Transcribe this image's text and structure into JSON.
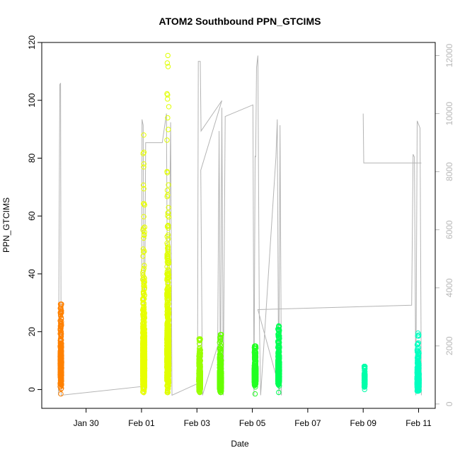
{
  "chart_data": {
    "type": "scatter",
    "title": "ATOM2 Southbound PPN_GTCIMS",
    "xlabel": "Date",
    "ylabel": "PPN_GTCIMS",
    "x_ticks": [
      "Jan 30",
      "Feb 01",
      "Feb 03",
      "Feb 05",
      "Feb 07",
      "Feb 09",
      "Feb 11"
    ],
    "x_tick_days": [
      30,
      32,
      34,
      36,
      38,
      40,
      42
    ],
    "xlim_days": [
      28.4,
      42.6
    ],
    "ylim": [
      -6.5,
      120
    ],
    "y_ticks": [
      0,
      20,
      40,
      60,
      80,
      100,
      120
    ],
    "right_axis": {
      "ylim": [
        -150,
        12450
      ],
      "ticks": [
        0,
        2000,
        4000,
        6000,
        8000,
        10000,
        12000
      ],
      "color": "#b8b8b8"
    },
    "grid": false,
    "legend": "none",
    "secondary_series_color": "#b4b4b4",
    "flights": [
      {
        "center": 29.09,
        "width": 0.05,
        "median": 8,
        "spread": 5,
        "max": 29.5,
        "min": -1.5,
        "count": 500,
        "color": "#ff8000"
      },
      {
        "center": 32.08,
        "width": 0.07,
        "median": 10,
        "spread": 7,
        "max": 88,
        "min": -1,
        "count": 1100,
        "color": "#e8ff00"
      },
      {
        "center": 32.95,
        "width": 0.07,
        "median": 12,
        "spread": 9,
        "max": 115.5,
        "min": -1,
        "count": 1100,
        "color": "#e0ff00"
      },
      {
        "center": 34.1,
        "width": 0.06,
        "median": 3,
        "spread": 2.5,
        "max": 17.5,
        "min": -1,
        "count": 700,
        "color": "#99ff00"
      },
      {
        "center": 34.85,
        "width": 0.07,
        "median": 3,
        "spread": 2.5,
        "max": 19,
        "min": -1,
        "count": 700,
        "color": "#66ff00"
      },
      {
        "center": 36.1,
        "width": 0.06,
        "median": 5,
        "spread": 2.5,
        "max": 15,
        "min": -1.5,
        "count": 800,
        "color": "#22ff22"
      },
      {
        "center": 36.95,
        "width": 0.06,
        "median": 6,
        "spread": 3,
        "max": 22,
        "min": -1,
        "count": 800,
        "color": "#00ff55"
      },
      {
        "center": 40.05,
        "width": 0.03,
        "median": 3,
        "spread": 1.5,
        "max": 8,
        "min": 0,
        "count": 250,
        "color": "#00ffaa"
      },
      {
        "center": 41.98,
        "width": 0.07,
        "median": 3,
        "spread": 2.5,
        "max": 19.5,
        "min": -0.5,
        "count": 700,
        "color": "#00ffc0"
      }
    ],
    "altitude_series": {
      "name": "",
      "path": [
        [
          29.0,
          300
        ],
        [
          29.05,
          11000
        ],
        [
          29.08,
          11050
        ],
        [
          29.1,
          300
        ],
        [
          32.0,
          600
        ],
        [
          32.02,
          9800
        ],
        [
          32.06,
          9600
        ],
        [
          32.1,
          300
        ],
        [
          32.15,
          9000
        ],
        [
          32.75,
          9000
        ],
        [
          32.9,
          10000
        ],
        [
          32.95,
          300
        ],
        [
          33.05,
          9700
        ],
        [
          33.1,
          300
        ],
        [
          34.02,
          700
        ],
        [
          34.05,
          11800
        ],
        [
          34.12,
          11800
        ],
        [
          34.15,
          9400
        ],
        [
          34.9,
          10450
        ],
        [
          34.14,
          8050
        ],
        [
          34.2,
          300
        ],
        [
          34.75,
          2000
        ],
        [
          34.8,
          9400
        ],
        [
          34.85,
          300
        ],
        [
          34.9,
          10200
        ],
        [
          34.95,
          300
        ],
        [
          35.02,
          9900
        ],
        [
          36.02,
          10300
        ],
        [
          36.06,
          300
        ],
        [
          36.1,
          8550
        ],
        [
          36.12,
          8500
        ],
        [
          36.15,
          11600
        ],
        [
          36.2,
          12000
        ],
        [
          36.25,
          3000
        ],
        [
          36.3,
          300
        ],
        [
          36.85,
          8500
        ],
        [
          36.9,
          9800
        ],
        [
          36.95,
          300
        ],
        [
          37.0,
          9600
        ],
        [
          37.05,
          300
        ],
        [
          36.2,
          3250
        ],
        [
          41.75,
          3400
        ],
        [
          41.8,
          8600
        ],
        [
          41.85,
          8500
        ],
        [
          41.9,
          300
        ],
        [
          41.95,
          9750
        ],
        [
          42.05,
          9500
        ],
        [
          42.1,
          300
        ]
      ],
      "segments_extra": [
        [
          [
            40.0,
            10000
          ],
          [
            40.02,
            8300
          ],
          [
            42.1,
            8300
          ]
        ]
      ]
    }
  }
}
